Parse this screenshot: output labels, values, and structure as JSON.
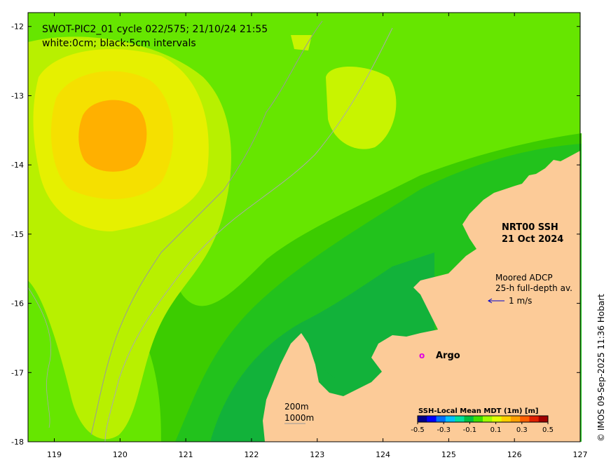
{
  "title": {
    "line1": "SWOT-PIC2_01 cycle 022/575; 21/10/24 21:55",
    "line2": "white:0cm; black:5cm intervals"
  },
  "product": {
    "line1": "NRT00 SSH",
    "line2": "21 Oct 2024"
  },
  "adcp": {
    "line1": "Moored ADCP",
    "line2": "25-h full-depth av.",
    "scale": "1 m/s"
  },
  "argo": {
    "marker": "o",
    "label": "Argo",
    "color": "#e000e0"
  },
  "isobaths": {
    "line1": "200m",
    "line2": "1000m"
  },
  "colorbar": {
    "title": "SSH-Local Mean MDT (1m) [m]",
    "ticks": [
      "-0.5",
      "-0.3",
      "-0.1",
      "0.1",
      "0.3",
      "0.5"
    ],
    "colors": [
      "#00008b",
      "#0000ff",
      "#0070ff",
      "#00c0ff",
      "#00e0a0",
      "#00c040",
      "#40e000",
      "#a0ff00",
      "#e0ff00",
      "#ffd000",
      "#ffa000",
      "#ff6000",
      "#e02000",
      "#a00000"
    ]
  },
  "axes": {
    "x_ticks": [
      "119",
      "120",
      "121",
      "122",
      "123",
      "124",
      "125",
      "126",
      "127"
    ],
    "y_ticks": [
      "-12",
      "-13",
      "-14",
      "-15",
      "-16",
      "-17",
      "-18"
    ],
    "lon_range": [
      118.6,
      127
    ],
    "lat_range": [
      -18,
      -11.8
    ]
  },
  "credit": "© IMOS 09-Sep-2025 11:36 Hobart",
  "colors": {
    "land": "#fccb98",
    "ssh_low": "#00b030",
    "ssh_mid": "#66ee00",
    "ssh_high": "#ffaa00"
  }
}
